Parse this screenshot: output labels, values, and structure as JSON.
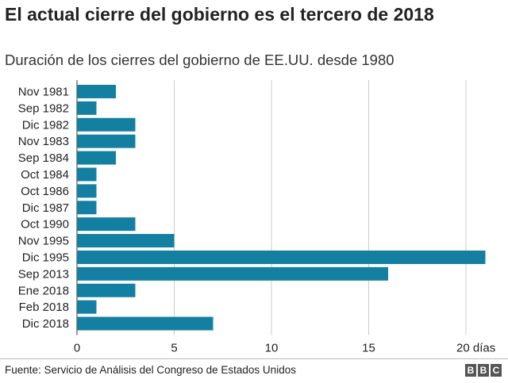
{
  "title": "El actual cierre del gobierno es el tercero de 2018",
  "subtitle": "Duración de los cierres del gobierno de EE.UU. desde 1980",
  "source": "Fuente: Servicio de Análisis del Congreso de Estados Unidos",
  "logo": [
    "B",
    "B",
    "C"
  ],
  "colors": {
    "bar": "#1380a1",
    "grid": "#cccccc",
    "text": "#222222"
  },
  "chart_data": {
    "type": "bar",
    "orientation": "horizontal",
    "categories": [
      "Nov 1981",
      "Sep 1982",
      "Dic 1982",
      "Nov 1983",
      "Sep 1984",
      "Oct 1984",
      "Oct 1986",
      "Dic 1987",
      "Oct 1990",
      "Nov 1995",
      "Dic 1995",
      "Sep 2013",
      "Ene 2018",
      "Feb 2018",
      "Dic 2018"
    ],
    "values": [
      2,
      1,
      3,
      3,
      2,
      1,
      1,
      1,
      3,
      5,
      21,
      16,
      3,
      1,
      7
    ],
    "xticks": [
      0,
      5,
      10,
      15,
      20
    ],
    "xtick_labels": [
      "0",
      "5",
      "10",
      "15",
      "20 días"
    ],
    "xlim": [
      0,
      21
    ],
    "grid": true
  }
}
